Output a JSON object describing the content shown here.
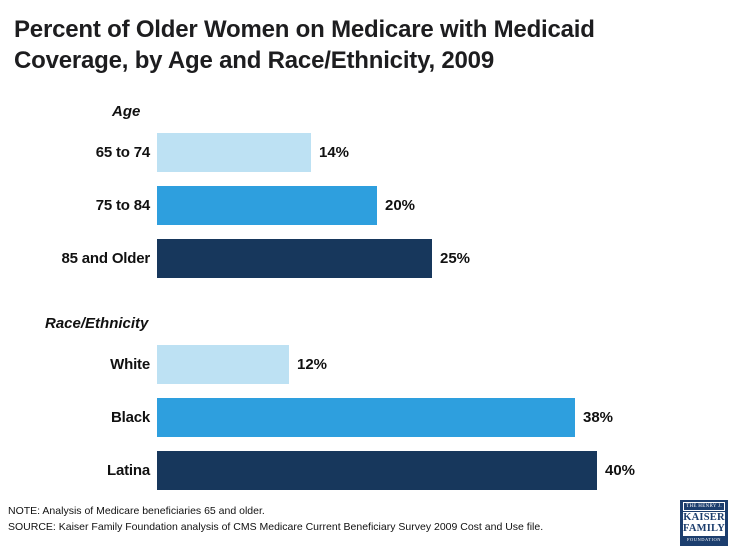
{
  "title": "Percent of Older Women on Medicare with Medicaid Coverage, by Age and Race/Ethnicity, 2009",
  "chart_data": {
    "type": "bar",
    "orientation": "horizontal",
    "value_suffix": "%",
    "xlim": [
      0,
      45
    ],
    "grid": false,
    "legend": "none",
    "palette": {
      "light_blue": "#bde1f3",
      "medium_blue": "#2e9fde",
      "navy": "#17375c"
    },
    "groups": [
      {
        "heading": "Age",
        "bars": [
          {
            "label": "65 to 74",
            "value": 14,
            "display": "14%",
            "color": "#bde1f3"
          },
          {
            "label": "75 to 84",
            "value": 20,
            "display": "20%",
            "color": "#2e9fde"
          },
          {
            "label": "85 and Older",
            "value": 25,
            "display": "25%",
            "color": "#17375c"
          }
        ]
      },
      {
        "heading": "Race/Ethnicity",
        "bars": [
          {
            "label": "White",
            "value": 12,
            "display": "12%",
            "color": "#bde1f3"
          },
          {
            "label": "Black",
            "value": 38,
            "display": "38%",
            "color": "#2e9fde"
          },
          {
            "label": "Latina",
            "value": 40,
            "display": "40%",
            "color": "#17375c"
          }
        ]
      }
    ]
  },
  "footer": {
    "note": "NOTE: Analysis of Medicare beneficiaries 65 and older.",
    "source": "SOURCE: Kaiser Family Foundation analysis of CMS Medicare Current Beneficiary Survey 2009 Cost and Use file."
  },
  "logo": {
    "top": "THE HENRY J.",
    "name_line1": "KAISER",
    "name_line2": "FAMILY",
    "bottom": "FOUNDATION",
    "color": "#1c3e6e"
  }
}
